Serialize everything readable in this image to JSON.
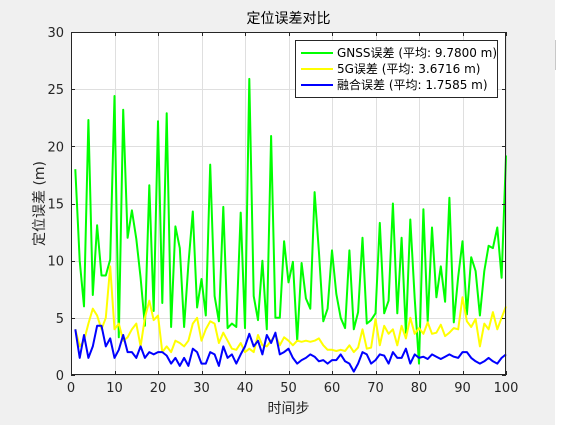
{
  "chart_data": {
    "type": "line",
    "title": "定位误差对比",
    "xlabel": "时间步",
    "ylabel": "定位误差 (m)",
    "xlim": [
      0,
      100
    ],
    "ylim": [
      0,
      30
    ],
    "xticks": [
      0,
      10,
      20,
      30,
      40,
      50,
      60,
      70,
      80,
      90,
      100
    ],
    "yticks": [
      0,
      5,
      10,
      15,
      20,
      25,
      30
    ],
    "grid": true,
    "legend_position": "top-right",
    "x": [
      1,
      2,
      3,
      4,
      5,
      6,
      7,
      8,
      9,
      10,
      11,
      12,
      13,
      14,
      15,
      16,
      17,
      18,
      19,
      20,
      21,
      22,
      23,
      24,
      25,
      26,
      27,
      28,
      29,
      30,
      31,
      32,
      33,
      34,
      35,
      36,
      37,
      38,
      39,
      40,
      41,
      42,
      43,
      44,
      45,
      46,
      47,
      48,
      49,
      50,
      51,
      52,
      53,
      54,
      55,
      56,
      57,
      58,
      59,
      60,
      61,
      62,
      63,
      64,
      65,
      66,
      67,
      68,
      69,
      70,
      71,
      72,
      73,
      74,
      75,
      76,
      77,
      78,
      79,
      80,
      81,
      82,
      83,
      84,
      85,
      86,
      87,
      88,
      89,
      90,
      91,
      92,
      93,
      94,
      95,
      96,
      97,
      98,
      99,
      100
    ],
    "series": [
      {
        "name": "GNSS误差 (平均: 9.7800 m)",
        "color": "#00ff00",
        "values": [
          18.0,
          10.0,
          6.0,
          22.3,
          7.0,
          13.1,
          8.7,
          8.7,
          10.1,
          24.4,
          3.3,
          23.2,
          12.0,
          14.4,
          11.9,
          8.5,
          4.3,
          16.6,
          5.6,
          22.2,
          6.3,
          22.9,
          4.2,
          13.0,
          11.1,
          4.2,
          9.7,
          14.3,
          5.9,
          8.4,
          5.2,
          18.4,
          6.9,
          4.7,
          14.7,
          4.1,
          4.5,
          4.2,
          14.2,
          4.1,
          25.9,
          6.9,
          4.8,
          10.0,
          4.0,
          20.9,
          5.0,
          5.0,
          11.7,
          8.1,
          9.9,
          3.0,
          9.8,
          6.7,
          5.8,
          16.0,
          10.8,
          4.7,
          5.8,
          10.9,
          7.1,
          5.0,
          4.1,
          10.9,
          4.0,
          5.5,
          12.0,
          4.5,
          4.8,
          5.4,
          13.3,
          5.4,
          6.5,
          15.0,
          5.4,
          12.0,
          3.7,
          13.6,
          6.7,
          1.0,
          14.5,
          4.7,
          12.9,
          6.8,
          9.5,
          6.4,
          15.5,
          4.6,
          8.6,
          11.7,
          5.3,
          10.3,
          9.1,
          5.2,
          9.1,
          11.3,
          11.1,
          12.9,
          8.5,
          19.2
        ]
      },
      {
        "name": "5G误差 (平均: 3.6716 m)",
        "color": "#ffff00",
        "values": [
          4.0,
          2.5,
          3.0,
          4.5,
          5.8,
          5.2,
          4.0,
          5.0,
          9.5,
          4.0,
          4.5,
          3.0,
          3.3,
          4.0,
          4.5,
          2.5,
          5.0,
          6.5,
          4.8,
          5.2,
          2.0,
          2.5,
          2.0,
          3.0,
          2.8,
          2.5,
          3.0,
          4.5,
          5.0,
          3.0,
          4.0,
          4.7,
          4.5,
          2.8,
          3.7,
          3.0,
          2.3,
          2.2,
          2.8,
          2.0,
          2.3,
          2.0,
          3.5,
          2.6,
          2.5,
          3.0,
          3.5,
          2.6,
          3.3,
          3.0,
          2.6,
          3.0,
          2.9,
          3.0,
          2.9,
          3.0,
          3.2,
          2.6,
          2.2,
          2.2,
          2.1,
          2.2,
          2.1,
          2.6,
          2.0,
          2.4,
          4.0,
          2.3,
          2.4,
          4.9,
          2.6,
          4.3,
          3.6,
          4.0,
          2.6,
          4.3,
          3.2,
          5.0,
          3.6,
          4.1,
          3.6,
          4.6,
          3.6,
          3.7,
          4.4,
          3.4,
          3.7,
          4.1,
          4.0,
          6.8,
          4.7,
          4.2,
          4.9,
          2.5,
          4.5,
          4.0,
          5.5,
          4.0,
          5.0,
          6.0
        ]
      },
      {
        "name": "融合误差 (平均: 1.7585 m)",
        "color": "#0000ff",
        "values": [
          4.0,
          1.5,
          3.5,
          1.5,
          2.5,
          4.3,
          4.3,
          2.5,
          3.2,
          1.5,
          2.2,
          3.5,
          2.0,
          2.0,
          1.5,
          2.5,
          1.5,
          2.0,
          1.8,
          2.0,
          2.0,
          1.7,
          1.0,
          1.5,
          0.8,
          1.5,
          0.8,
          2.3,
          2.0,
          1.0,
          1.0,
          2.0,
          1.8,
          0.8,
          2.5,
          1.5,
          1.8,
          1.0,
          1.8,
          2.5,
          3.6,
          2.5,
          3.0,
          1.8,
          3.5,
          2.8,
          3.7,
          1.8,
          2.0,
          2.3,
          1.5,
          1.0,
          1.3,
          1.5,
          1.8,
          1.6,
          1.2,
          1.3,
          1.0,
          1.3,
          1.3,
          1.8,
          1.2,
          1.0,
          0.3,
          1.0,
          2.0,
          1.8,
          1.0,
          1.3,
          1.8,
          1.7,
          1.0,
          2.0,
          1.5,
          1.5,
          2.3,
          1.0,
          1.8,
          1.5,
          1.6,
          1.4,
          1.8,
          1.6,
          1.4,
          1.6,
          1.8,
          1.6,
          1.5,
          2.0,
          2.0,
          1.5,
          1.2,
          1.0,
          1.2,
          1.5,
          1.2,
          1.0,
          1.5,
          1.8
        ]
      }
    ]
  }
}
